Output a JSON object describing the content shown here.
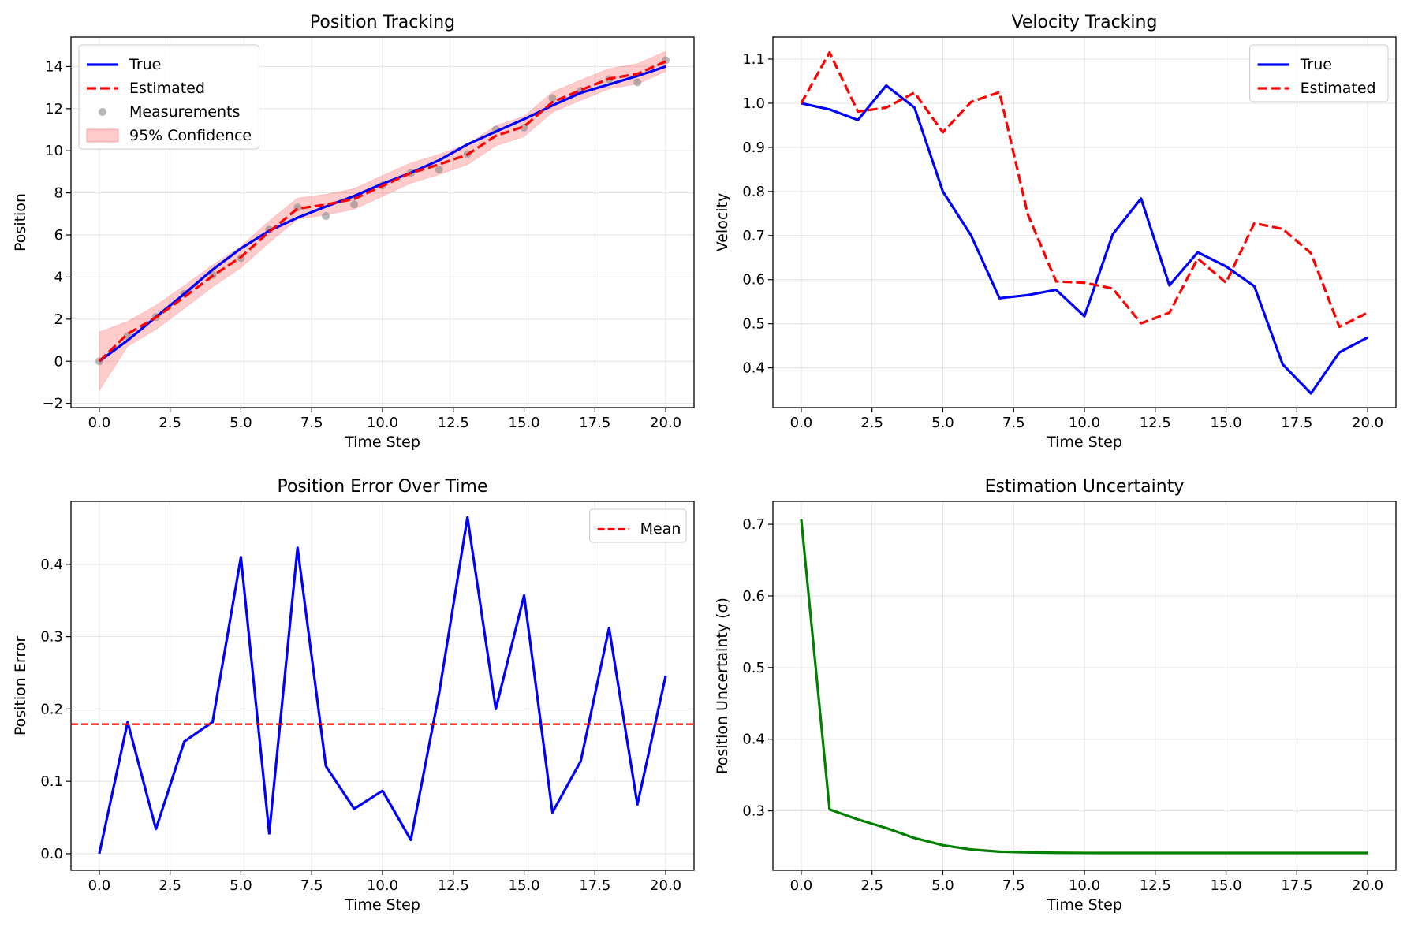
{
  "chart_data": [
    {
      "type": "line",
      "title": "Position Tracking",
      "xlabel": "Time Step",
      "ylabel": "Position",
      "xlim": [
        -1,
        21
      ],
      "ylim": [
        -2.2,
        15.4
      ],
      "xticks": [
        0,
        2.5,
        5,
        7.5,
        10,
        12.5,
        15,
        17.5,
        20
      ],
      "xtick_labels": [
        "0.0",
        "2.5",
        "5.0",
        "7.5",
        "10.0",
        "12.5",
        "15.0",
        "17.5",
        "20.0"
      ],
      "yticks": [
        -2,
        0,
        2,
        4,
        6,
        8,
        10,
        12,
        14
      ],
      "ytick_labels": [
        "−2",
        "0",
        "2",
        "4",
        "6",
        "8",
        "10",
        "12",
        "14"
      ],
      "grid": true,
      "legend": "top-left",
      "x": [
        0,
        1,
        2,
        3,
        4,
        5,
        6,
        7,
        8,
        9,
        10,
        11,
        12,
        13,
        14,
        15,
        16,
        17,
        18,
        19,
        20
      ],
      "series": [
        {
          "name": "True",
          "kind": "line",
          "color": "#0000ff",
          "dash": "solid",
          "values": [
            0.0,
            0.99,
            2.1,
            3.2,
            4.35,
            5.36,
            6.2,
            6.82,
            7.35,
            7.85,
            8.43,
            8.95,
            9.55,
            10.3,
            10.91,
            11.5,
            12.15,
            12.75,
            13.15,
            13.55,
            14.0
          ]
        },
        {
          "name": "Estimated",
          "kind": "line",
          "color": "#ff0000",
          "dash": "dashed",
          "values": [
            0.0,
            1.3,
            2.08,
            3.05,
            4.05,
            4.95,
            6.15,
            7.25,
            7.44,
            7.71,
            8.33,
            8.94,
            9.35,
            9.82,
            10.71,
            11.15,
            12.31,
            12.88,
            13.42,
            13.65,
            14.24
          ]
        },
        {
          "name": "Measurements",
          "kind": "scatter",
          "color": "#808080",
          "values": [
            0.0,
            1.2,
            2.1,
            3.2,
            4.1,
            4.9,
            6.25,
            7.3,
            6.9,
            7.45,
            8.35,
            8.95,
            9.1,
            9.85,
            11.0,
            11.1,
            12.5,
            12.85,
            13.4,
            13.25,
            14.3
          ]
        },
        {
          "name": "95% Confidence",
          "kind": "band",
          "color": "#ff0000",
          "lower": [
            -1.39,
            0.71,
            1.51,
            2.51,
            3.53,
            4.44,
            5.64,
            6.75,
            6.95,
            7.22,
            7.84,
            8.46,
            8.87,
            9.34,
            10.23,
            10.67,
            11.83,
            12.4,
            12.94,
            13.17,
            13.76
          ],
          "upper": [
            1.39,
            1.89,
            2.65,
            3.59,
            4.57,
            5.46,
            6.66,
            7.75,
            7.93,
            8.2,
            8.82,
            9.42,
            9.83,
            10.3,
            11.19,
            11.63,
            12.79,
            13.36,
            13.9,
            14.13,
            14.72
          ]
        }
      ]
    },
    {
      "type": "line",
      "title": "Velocity Tracking",
      "xlabel": "Time Step",
      "ylabel": "Velocity",
      "xlim": [
        -1,
        21
      ],
      "ylim": [
        0.31,
        1.15
      ],
      "xticks": [
        0,
        2.5,
        5,
        7.5,
        10,
        12.5,
        15,
        17.5,
        20
      ],
      "xtick_labels": [
        "0.0",
        "2.5",
        "5.0",
        "7.5",
        "10.0",
        "12.5",
        "15.0",
        "17.5",
        "20.0"
      ],
      "yticks": [
        0.4,
        0.5,
        0.6,
        0.7,
        0.8,
        0.9,
        1.0,
        1.1
      ],
      "ytick_labels": [
        "0.4",
        "0.5",
        "0.6",
        "0.7",
        "0.8",
        "0.9",
        "1.0",
        "1.1"
      ],
      "grid": true,
      "legend": "top-right",
      "x": [
        0,
        1,
        2,
        3,
        4,
        5,
        6,
        7,
        8,
        9,
        10,
        11,
        12,
        13,
        14,
        15,
        16,
        17,
        18,
        19,
        20
      ],
      "series": [
        {
          "name": "True",
          "kind": "line",
          "color": "#0000ff",
          "dash": "solid",
          "values": [
            1.0,
            0.986,
            0.962,
            1.04,
            0.99,
            0.8,
            0.7,
            0.558,
            0.565,
            0.577,
            0.517,
            0.703,
            0.784,
            0.587,
            0.662,
            0.63,
            0.585,
            0.408,
            0.342,
            0.435,
            0.469
          ]
        },
        {
          "name": "Estimated",
          "kind": "line",
          "color": "#ff0000",
          "dash": "dashed",
          "values": [
            1.0,
            1.115,
            0.981,
            0.99,
            1.024,
            0.934,
            1.003,
            1.025,
            0.748,
            0.596,
            0.593,
            0.58,
            0.501,
            0.525,
            0.648,
            0.593,
            0.728,
            0.715,
            0.66,
            0.493,
            0.525
          ]
        }
      ]
    },
    {
      "type": "line",
      "title": "Position Error Over Time",
      "xlabel": "Time Step",
      "ylabel": "Position Error",
      "xlim": [
        -1,
        21
      ],
      "ylim": [
        -0.023,
        0.487
      ],
      "xticks": [
        0,
        2.5,
        5,
        7.5,
        10,
        12.5,
        15,
        17.5,
        20
      ],
      "xtick_labels": [
        "0.0",
        "2.5",
        "5.0",
        "7.5",
        "10.0",
        "12.5",
        "15.0",
        "17.5",
        "20.0"
      ],
      "yticks": [
        0.0,
        0.1,
        0.2,
        0.3,
        0.4
      ],
      "ytick_labels": [
        "0.0",
        "0.1",
        "0.2",
        "0.3",
        "0.4"
      ],
      "grid": true,
      "legend": "top-right",
      "x": [
        0,
        1,
        2,
        3,
        4,
        5,
        6,
        7,
        8,
        9,
        10,
        11,
        12,
        13,
        14,
        15,
        16,
        17,
        18,
        19,
        20
      ],
      "series": [
        {
          "name": "",
          "kind": "line",
          "color": "#0000ff",
          "dash": "solid",
          "values": [
            0.0,
            0.182,
            0.034,
            0.155,
            0.182,
            0.41,
            0.028,
            0.423,
            0.121,
            0.062,
            0.087,
            0.019,
            0.222,
            0.465,
            0.2,
            0.357,
            0.057,
            0.128,
            0.312,
            0.068,
            0.246
          ]
        },
        {
          "name": "Mean",
          "kind": "hline",
          "color": "#ff0000",
          "dash": "dashed",
          "value": 0.179
        }
      ]
    },
    {
      "type": "line",
      "title": "Estimation Uncertainty",
      "xlabel": "Time Step",
      "ylabel": "Position Uncertainty (σ)",
      "xlim": [
        -1,
        21
      ],
      "ylim": [
        0.217,
        0.732
      ],
      "xticks": [
        0,
        2.5,
        5,
        7.5,
        10,
        12.5,
        15,
        17.5,
        20
      ],
      "xtick_labels": [
        "0.0",
        "2.5",
        "5.0",
        "7.5",
        "10.0",
        "12.5",
        "15.0",
        "17.5",
        "20.0"
      ],
      "yticks": [
        0.3,
        0.4,
        0.5,
        0.6,
        0.7
      ],
      "ytick_labels": [
        "0.3",
        "0.4",
        "0.5",
        "0.6",
        "0.7"
      ],
      "grid": true,
      "legend": "none",
      "x": [
        0,
        1,
        2,
        3,
        4,
        5,
        6,
        7,
        8,
        9,
        10,
        11,
        12,
        13,
        14,
        15,
        16,
        17,
        18,
        19,
        20
      ],
      "series": [
        {
          "name": "",
          "kind": "line",
          "color": "#008000",
          "dash": "solid",
          "values": [
            0.707,
            0.302,
            0.288,
            0.276,
            0.262,
            0.252,
            0.246,
            0.243,
            0.242,
            0.2415,
            0.2413,
            0.2412,
            0.2412,
            0.2412,
            0.2412,
            0.2412,
            0.2412,
            0.2412,
            0.2412,
            0.2412,
            0.2412
          ]
        }
      ]
    }
  ]
}
